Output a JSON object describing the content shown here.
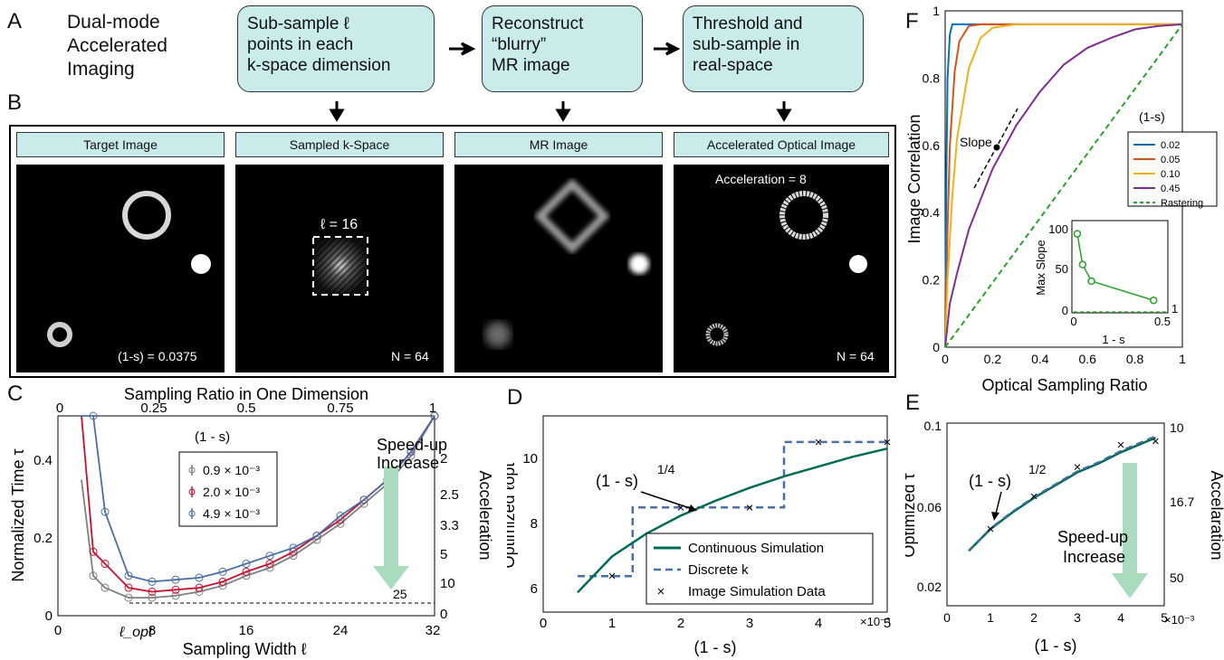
{
  "panel_labels": {
    "A": "A",
    "B": "B",
    "C": "C",
    "D": "D",
    "E": "E",
    "F": "F"
  },
  "panel_a": {
    "title": "Dual-mode\nAccelerated\nImaging",
    "steps": [
      "Sub-sample ℓ\npoints in each\nk-space dimension",
      "Reconstruct\n“blurry”\nMR image",
      "Threshold and\nsub-sample in\nreal-space"
    ]
  },
  "panel_b": {
    "headers": [
      "Target Image",
      "Sampled k-Space",
      "MR Image",
      "Accelerated Optical Image"
    ],
    "target_note": "(1-s) = 0.0375",
    "kspace_label": "ℓ = 16",
    "kspace_n": "N = 64",
    "accel_label": "Acceleration = 8",
    "optical_n": "N = 64"
  },
  "panel_c": {
    "top_axis_title": "Sampling Ratio in One Dimension",
    "top_ticks": [
      "0",
      "0.25",
      "0.5",
      "0.75",
      "1"
    ],
    "y_title": "Normalized Time τ",
    "y_ticks": [
      "0",
      "0.2",
      "0.4"
    ],
    "x_title": "Sampling Width ℓ",
    "x_ticks": [
      "0",
      "8",
      "16",
      "24",
      "32"
    ],
    "x_extra": "ℓ_opt",
    "right_title": "Acceleration",
    "right_ticks": [
      "2",
      "2.5",
      "3.3",
      "5",
      "10",
      "25",
      "0"
    ],
    "legend_title": "(1 - s)",
    "legend": [
      {
        "label": "0.9 × 10⁻³",
        "color": "#7f7f7f"
      },
      {
        "label": "2.0 × 10⁻³",
        "color": "#c8102e"
      },
      {
        "label": "4.9 × 10⁻³",
        "color": "#4a6fa5"
      }
    ],
    "speedup": "Speed-up\nIncrease",
    "line_label": "25"
  },
  "panel_d": {
    "y_title": "Optimized ℓopt",
    "y_ticks": [
      "6",
      "8",
      "10"
    ],
    "x_title": "(1 - s)",
    "x_ticks": [
      "0",
      "1",
      "2",
      "3",
      "4",
      "5"
    ],
    "x_exp": "×10⁻³",
    "annotation": "(1 - s)",
    "annotation_exp": "1/4",
    "legend": [
      "Continuous Simulation",
      "Discrete k",
      "Image Simulation Data"
    ]
  },
  "panel_e": {
    "y_title": "Optimized τ",
    "y_ticks": [
      "0.02",
      "0.06",
      "0.1"
    ],
    "x_title": "(1 - s)",
    "x_ticks": [
      "0",
      "1",
      "2",
      "3",
      "4",
      "5"
    ],
    "x_exp": "×10⁻³",
    "right_title": "Accelaration",
    "right_ticks": [
      "10",
      "16.7",
      "50"
    ],
    "annotation": "(1 - s)",
    "annotation_exp": "1/2",
    "speedup": "Speed-up\nIncrease"
  },
  "panel_f": {
    "y_title": "Image Correlation",
    "y_ticks": [
      "0",
      "0.2",
      "0.4",
      "0.6",
      "0.8",
      "1"
    ],
    "x_title": "Optical Sampling Ratio",
    "x_ticks": [
      "0",
      "0.2",
      "0.4",
      "0.6",
      "0.8",
      "1"
    ],
    "slope_label": "Slope",
    "legend_title": "(1-s)",
    "legend": [
      {
        "label": "0.02",
        "color": "#0072bd"
      },
      {
        "label": "0.05",
        "color": "#d95319"
      },
      {
        "label": "0.10",
        "color": "#edb120"
      },
      {
        "label": "0.45",
        "color": "#7e2f8e"
      },
      {
        "label": "Rastering",
        "color": "#2ca02c"
      }
    ],
    "inset_y_title": "Max Slope",
    "inset_y_ticks": [
      "0",
      "50",
      "100"
    ],
    "inset_x_title": "1 - s",
    "inset_x_ticks": [
      "0",
      "0.5"
    ],
    "inset_right": "1"
  },
  "chart_data": [
    {
      "type": "line",
      "panel": "C",
      "xlabel": "Sampling Width ℓ",
      "ylabel": "Normalized Time τ",
      "xlim": [
        0,
        32
      ],
      "ylim": [
        0,
        0.5
      ],
      "series": [
        {
          "name": "0.9 × 10⁻³",
          "x": [
            2,
            3,
            4,
            6,
            8,
            10,
            12,
            14,
            16,
            18,
            20,
            22,
            24,
            26,
            28,
            30,
            32
          ],
          "y": [
            0.34,
            0.1,
            0.07,
            0.045,
            0.045,
            0.05,
            0.06,
            0.075,
            0.1,
            0.12,
            0.15,
            0.19,
            0.23,
            0.28,
            0.33,
            0.4,
            0.5
          ]
        },
        {
          "name": "2.0 × 10⁻³",
          "x": [
            2,
            3,
            4,
            6,
            8,
            10,
            12,
            14,
            16,
            18,
            20,
            22,
            24,
            26,
            28,
            30,
            32
          ],
          "y": [
            0.5,
            0.16,
            0.13,
            0.07,
            0.06,
            0.065,
            0.07,
            0.085,
            0.11,
            0.13,
            0.16,
            0.2,
            0.24,
            0.29,
            0.34,
            0.41,
            0.5
          ]
        },
        {
          "name": "4.9 × 10⁻³",
          "x": [
            2,
            3,
            4,
            6,
            8,
            10,
            12,
            14,
            16,
            18,
            20,
            22,
            24,
            26,
            28,
            30,
            32
          ],
          "y": [
            0.5,
            0.5,
            0.26,
            0.1,
            0.085,
            0.09,
            0.095,
            0.11,
            0.13,
            0.15,
            0.17,
            0.2,
            0.25,
            0.29,
            0.34,
            0.41,
            0.5
          ]
        }
      ]
    },
    {
      "type": "line",
      "panel": "D",
      "xlabel": "(1 - s)",
      "ylabel": "Optimized ℓopt",
      "xlim": [
        0,
        5
      ],
      "ylim": [
        5,
        11
      ],
      "series": [
        {
          "name": "Continuous Simulation",
          "x": [
            0.5,
            1,
            1.5,
            2,
            2.5,
            3,
            3.5,
            4,
            4.5,
            5
          ],
          "y": [
            5.6,
            6.7,
            7.4,
            7.95,
            8.4,
            8.8,
            9.15,
            9.45,
            9.75,
            10.0
          ]
        },
        {
          "name": "Discrete k",
          "x": [
            0.5,
            1.3,
            1.3,
            3.5,
            3.5,
            5
          ],
          "y": [
            6.1,
            6.1,
            8.2,
            8.2,
            10.2,
            10.2
          ]
        },
        {
          "name": "Image Simulation Data",
          "x": [
            1,
            2,
            3,
            4,
            5
          ],
          "y": [
            6.1,
            8.2,
            8.2,
            10.2,
            10.2
          ]
        }
      ]
    },
    {
      "type": "line",
      "panel": "E",
      "xlabel": "(1 - s)",
      "ylabel": "Optimized τ",
      "xlim": [
        0,
        5
      ],
      "ylim": [
        0,
        0.1
      ],
      "series": [
        {
          "x": [
            0.5,
            1,
            1.5,
            2,
            2.5,
            3,
            3.5,
            4,
            4.5,
            4.8
          ],
          "y": [
            0.03,
            0.042,
            0.051,
            0.059,
            0.066,
            0.073,
            0.078,
            0.084,
            0.089,
            0.092
          ]
        },
        {
          "x": [
            1,
            2,
            3,
            4,
            4.8
          ],
          "y": [
            0.042,
            0.06,
            0.076,
            0.088,
            0.09
          ]
        }
      ]
    },
    {
      "type": "line",
      "panel": "F",
      "xlabel": "Optical Sampling Ratio",
      "ylabel": "Image Correlation",
      "xlim": [
        0,
        1
      ],
      "ylim": [
        0,
        1
      ],
      "series": [
        {
          "name": "0.02",
          "x": [
            0,
            0.005,
            0.01,
            0.02,
            0.03,
            0.05,
            1
          ],
          "y": [
            0,
            0.5,
            0.8,
            0.93,
            0.96,
            0.96,
            0.96
          ]
        },
        {
          "name": "0.05",
          "x": [
            0,
            0.01,
            0.02,
            0.04,
            0.06,
            0.1,
            0.15,
            1
          ],
          "y": [
            0,
            0.35,
            0.6,
            0.82,
            0.91,
            0.955,
            0.96,
            0.96
          ]
        },
        {
          "name": "0.10",
          "x": [
            0,
            0.01,
            0.03,
            0.05,
            0.1,
            0.15,
            0.2,
            0.3,
            1
          ],
          "y": [
            0,
            0.2,
            0.45,
            0.62,
            0.83,
            0.92,
            0.95,
            0.96,
            0.96
          ]
        },
        {
          "name": "0.45",
          "x": [
            0,
            0.02,
            0.05,
            0.1,
            0.2,
            0.3,
            0.4,
            0.5,
            0.6,
            0.7,
            0.8,
            0.9,
            1
          ],
          "y": [
            0,
            0.13,
            0.22,
            0.35,
            0.53,
            0.66,
            0.76,
            0.84,
            0.89,
            0.92,
            0.945,
            0.955,
            0.96
          ]
        },
        {
          "name": "Rastering",
          "x": [
            0,
            1
          ],
          "y": [
            0,
            0.96
          ]
        }
      ]
    },
    {
      "type": "line",
      "panel": "F-inset",
      "xlabel": "1 - s",
      "ylabel": "Max Slope",
      "xlim": [
        0,
        0.5
      ],
      "ylim": [
        0,
        100
      ],
      "series": [
        {
          "x": [
            0.02,
            0.05,
            0.1,
            0.45
          ],
          "y": [
            95,
            58,
            38,
            15
          ]
        }
      ]
    }
  ]
}
